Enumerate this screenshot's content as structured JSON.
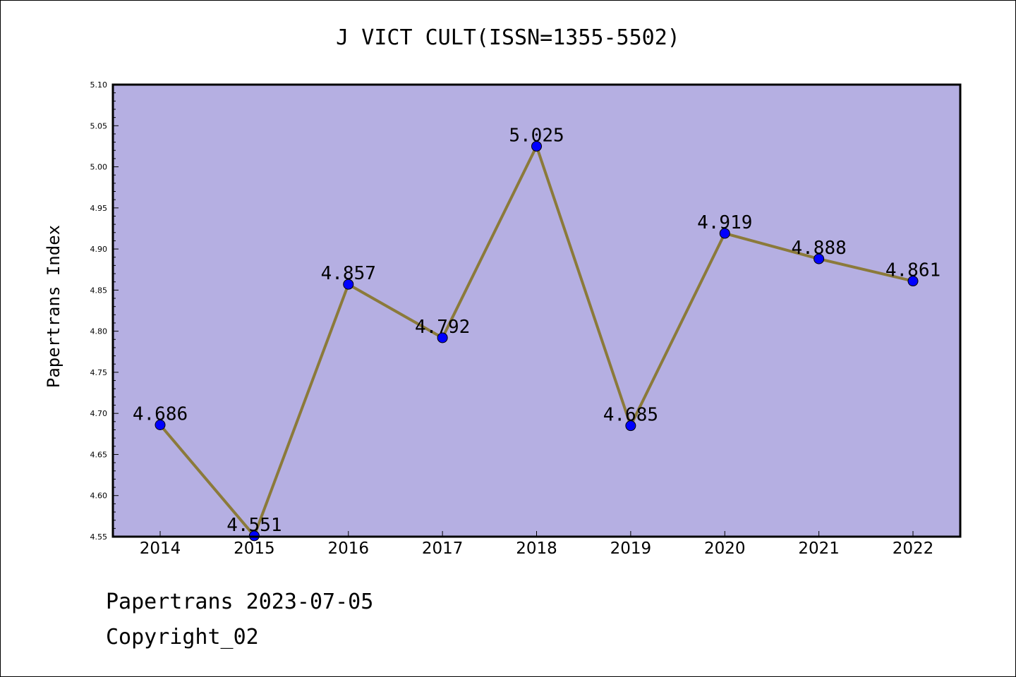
{
  "chart_data": {
    "type": "line",
    "title": "J VICT CULT(ISSN=1355-5502)",
    "xlabel": "",
    "ylabel": "Papertrans Index",
    "categories": [
      "2014",
      "2015",
      "2016",
      "2017",
      "2018",
      "2019",
      "2020",
      "2021",
      "2022"
    ],
    "values": [
      4.686,
      4.551,
      4.857,
      4.792,
      5.025,
      4.685,
      4.919,
      4.888,
      4.861
    ],
    "data_labels": [
      "4.686",
      "4.551",
      "4.857",
      "4.792",
      "5.025",
      "4.685",
      "4.919",
      "4.888",
      "4.861"
    ],
    "ylim": [
      4.55,
      5.1
    ],
    "yticks": [
      "4.55",
      "4.60",
      "4.65",
      "4.70",
      "4.75",
      "4.80",
      "4.85",
      "4.90",
      "4.95",
      "5.00",
      "5.05",
      "5.10"
    ],
    "grid": false,
    "colors": {
      "plot_background": "#b5afe2",
      "line": "#8b7a3a",
      "marker": "#0000ff"
    }
  },
  "footer": {
    "line1": "Papertrans 2023-07-05",
    "line2": "Copyright_02"
  }
}
